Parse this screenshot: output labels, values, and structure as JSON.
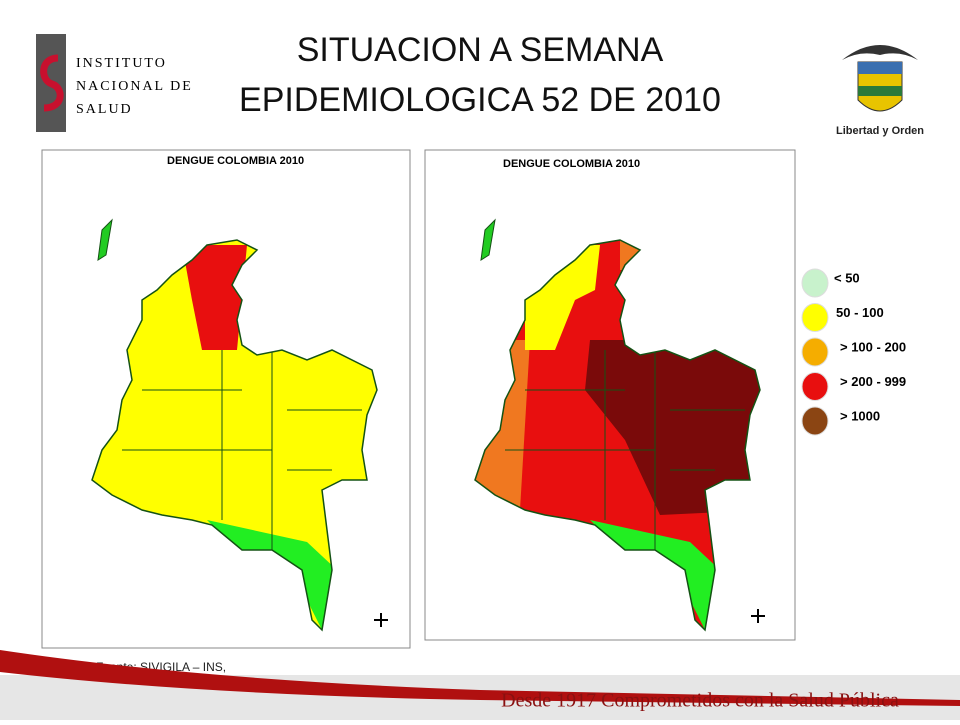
{
  "header": {
    "title_lines": [
      "SITUACION A SEMANA",
      "EPIDEMIOLOGICA 52 DE 2010"
    ],
    "logo_lines": [
      "INSTITUTO",
      "NACIONAL DE",
      "SALUD"
    ],
    "crest_motto": "Libertad y Orden"
  },
  "maps": [
    {
      "title": "DENGUE COLOMBIA 2010"
    },
    {
      "title": "DENGUE COLOMBIA 2010"
    }
  ],
  "legend": [
    {
      "label": "< 50",
      "color": "#c8f2cc"
    },
    {
      "label": "50 - 100",
      "color": "#ffff00"
    },
    {
      "label": "> 100 - 200",
      "color": "#f5ad00"
    },
    {
      "label": "> 200 - 999",
      "color": "#e80f0f"
    },
    {
      "label": "> 1000",
      "color": "#8b4513"
    }
  ],
  "source": "Fuente: SIVIGILA – INS,",
  "footer": "Desde 1917 Comprometidos con la Salud Pública"
}
